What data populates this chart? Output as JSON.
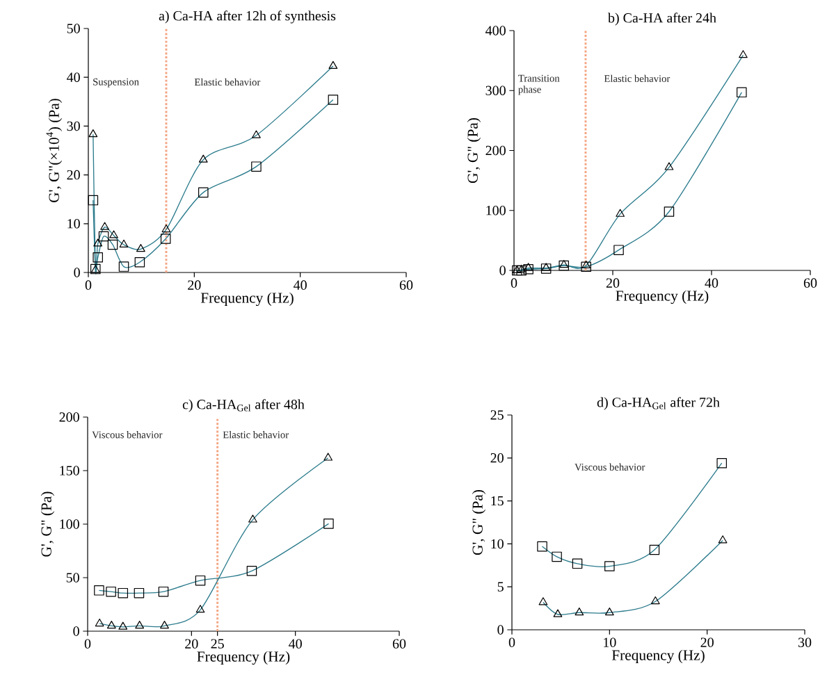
{
  "chart_data": [
    {
      "type": "line",
      "title": "a) Ca-HA  after 12h of synthesis",
      "xlabel": "Frequency (Hz)",
      "ylabel": "G', G\"(×10$^{4}$) (Pa)",
      "xlim": [
        0,
        60
      ],
      "ylim": [
        0,
        50
      ],
      "xticks": [
        0,
        20,
        40,
        60
      ],
      "yticks": [
        0,
        10,
        20,
        30,
        40,
        50
      ],
      "series": [
        {
          "color": "#2b7b8c",
          "marker": "triangle",
          "x": [
            0.9,
            1.35,
            1.8,
            3.1,
            4.8,
            6.7,
            9.9,
            14.7,
            21.7,
            31.7,
            46.2
          ],
          "values": [
            28.3,
            0.5,
            5.9,
            9.3,
            7.6,
            5.7,
            4.8,
            8.8,
            23.1,
            28.1,
            42.3
          ]
        },
        {
          "color": "#2b7b8c",
          "marker": "square",
          "x": [
            0.9,
            1.35,
            1.8,
            2.9,
            4.6,
            6.7,
            9.7,
            14.6,
            21.7,
            31.7,
            46.2
          ],
          "values": [
            14.8,
            0.7,
            3.1,
            7.4,
            5.7,
            1.2,
            2.1,
            6.9,
            16.4,
            21.7,
            35.4
          ]
        }
      ],
      "ref_lines": [
        {
          "axis": "x",
          "value": 14.7,
          "color": "#f4a582",
          "line_style": "dotted"
        }
      ],
      "annotations": [
        "Suspension",
        "Elastic behavior"
      ]
    },
    {
      "type": "line",
      "title": "b) Ca-HA after 24h",
      "xlabel": "Frequency (Hz)",
      "ylabel": "G', G\" (Pa)",
      "xlim": [
        0,
        60
      ],
      "ylim": [
        0,
        400
      ],
      "xticks": [
        0,
        20,
        40,
        60
      ],
      "yticks": [
        0,
        100,
        200,
        300,
        400
      ],
      "series": [
        {
          "color": "#2b7b8c",
          "marker": "square",
          "x": [
            0.6,
            1.5,
            2.9,
            6.5,
            10.1,
            14.6,
            21.2,
            31.4,
            46.1
          ],
          "values": [
            0,
            0,
            2,
            3,
            8,
            6,
            34,
            98,
            297
          ]
        },
        {
          "color": "#2b7b8c",
          "marker": "triangle",
          "x": [
            0.6,
            1.5,
            2.9,
            6.5,
            10.1,
            14.6,
            21.5,
            31.4,
            46.4
          ],
          "values": [
            0,
            1,
            4,
            4,
            9,
            8,
            94,
            172,
            359
          ]
        }
      ],
      "ref_lines": [
        {
          "axis": "x",
          "value": 14.5,
          "color": "#f4a582",
          "line_style": "dotted"
        }
      ],
      "annotations": [
        "Transition phase",
        "Elastic behavior"
      ]
    },
    {
      "type": "line",
      "title": "c) Ca-HA$_{Gel}$  after 48h",
      "xlabel": "Frequency (Hz)",
      "ylabel": "G', G\" (Pa)",
      "xlim": [
        0,
        60
      ],
      "ylim": [
        0,
        200
      ],
      "xticks": [
        0,
        20,
        25,
        40,
        60
      ],
      "yticks": [
        0,
        50,
        100,
        150,
        200
      ],
      "series": [
        {
          "color": "#2b7b8c",
          "marker": "square",
          "x": [
            2.2,
            4.5,
            6.8,
            9.9,
            14.6,
            21.7,
            31.6,
            46.4
          ],
          "values": [
            38.1,
            36.9,
            35.6,
            35.6,
            36.9,
            47.3,
            56.3,
            100.4
          ]
        },
        {
          "color": "#2b7b8c",
          "marker": "triangle",
          "x": [
            2.3,
            4.6,
            6.8,
            10.0,
            14.8,
            21.7,
            31.8,
            46.3
          ],
          "values": [
            7.0,
            5,
            4,
            5,
            5,
            19.9,
            104.1,
            161.9
          ]
        }
      ],
      "ref_lines": [
        {
          "axis": "x",
          "value": 25,
          "color": "#f4a582",
          "line_style": "dotted"
        }
      ],
      "annotations": [
        "Viscous behavior",
        "Elastic behavior"
      ]
    },
    {
      "type": "line",
      "title": "d) Ca-HA$_{Gel}$  after 72h",
      "xlabel": "Frequency (Hz)",
      "ylabel": "G', G\" (Pa)",
      "xlim": [
        0,
        30
      ],
      "ylim": [
        0,
        25
      ],
      "xticks": [
        0,
        10,
        20,
        30
      ],
      "yticks": [
        0,
        5,
        10,
        15,
        20,
        25
      ],
      "series": [
        {
          "color": "#2b7b8c",
          "marker": "square",
          "x": [
            3.1,
            4.6,
            6.7,
            10.0,
            14.6,
            21.5
          ],
          "values": [
            9.7,
            8.5,
            7.7,
            7.4,
            9.3,
            19.4
          ]
        },
        {
          "color": "#2b7b8c",
          "marker": "triangle",
          "x": [
            3.2,
            4.7,
            6.9,
            10.0,
            14.7,
            21.6
          ],
          "values": [
            3.2,
            1.8,
            2.0,
            2.0,
            3.3,
            10.4
          ]
        }
      ],
      "annotations": [
        "Viscous behavior"
      ]
    }
  ]
}
